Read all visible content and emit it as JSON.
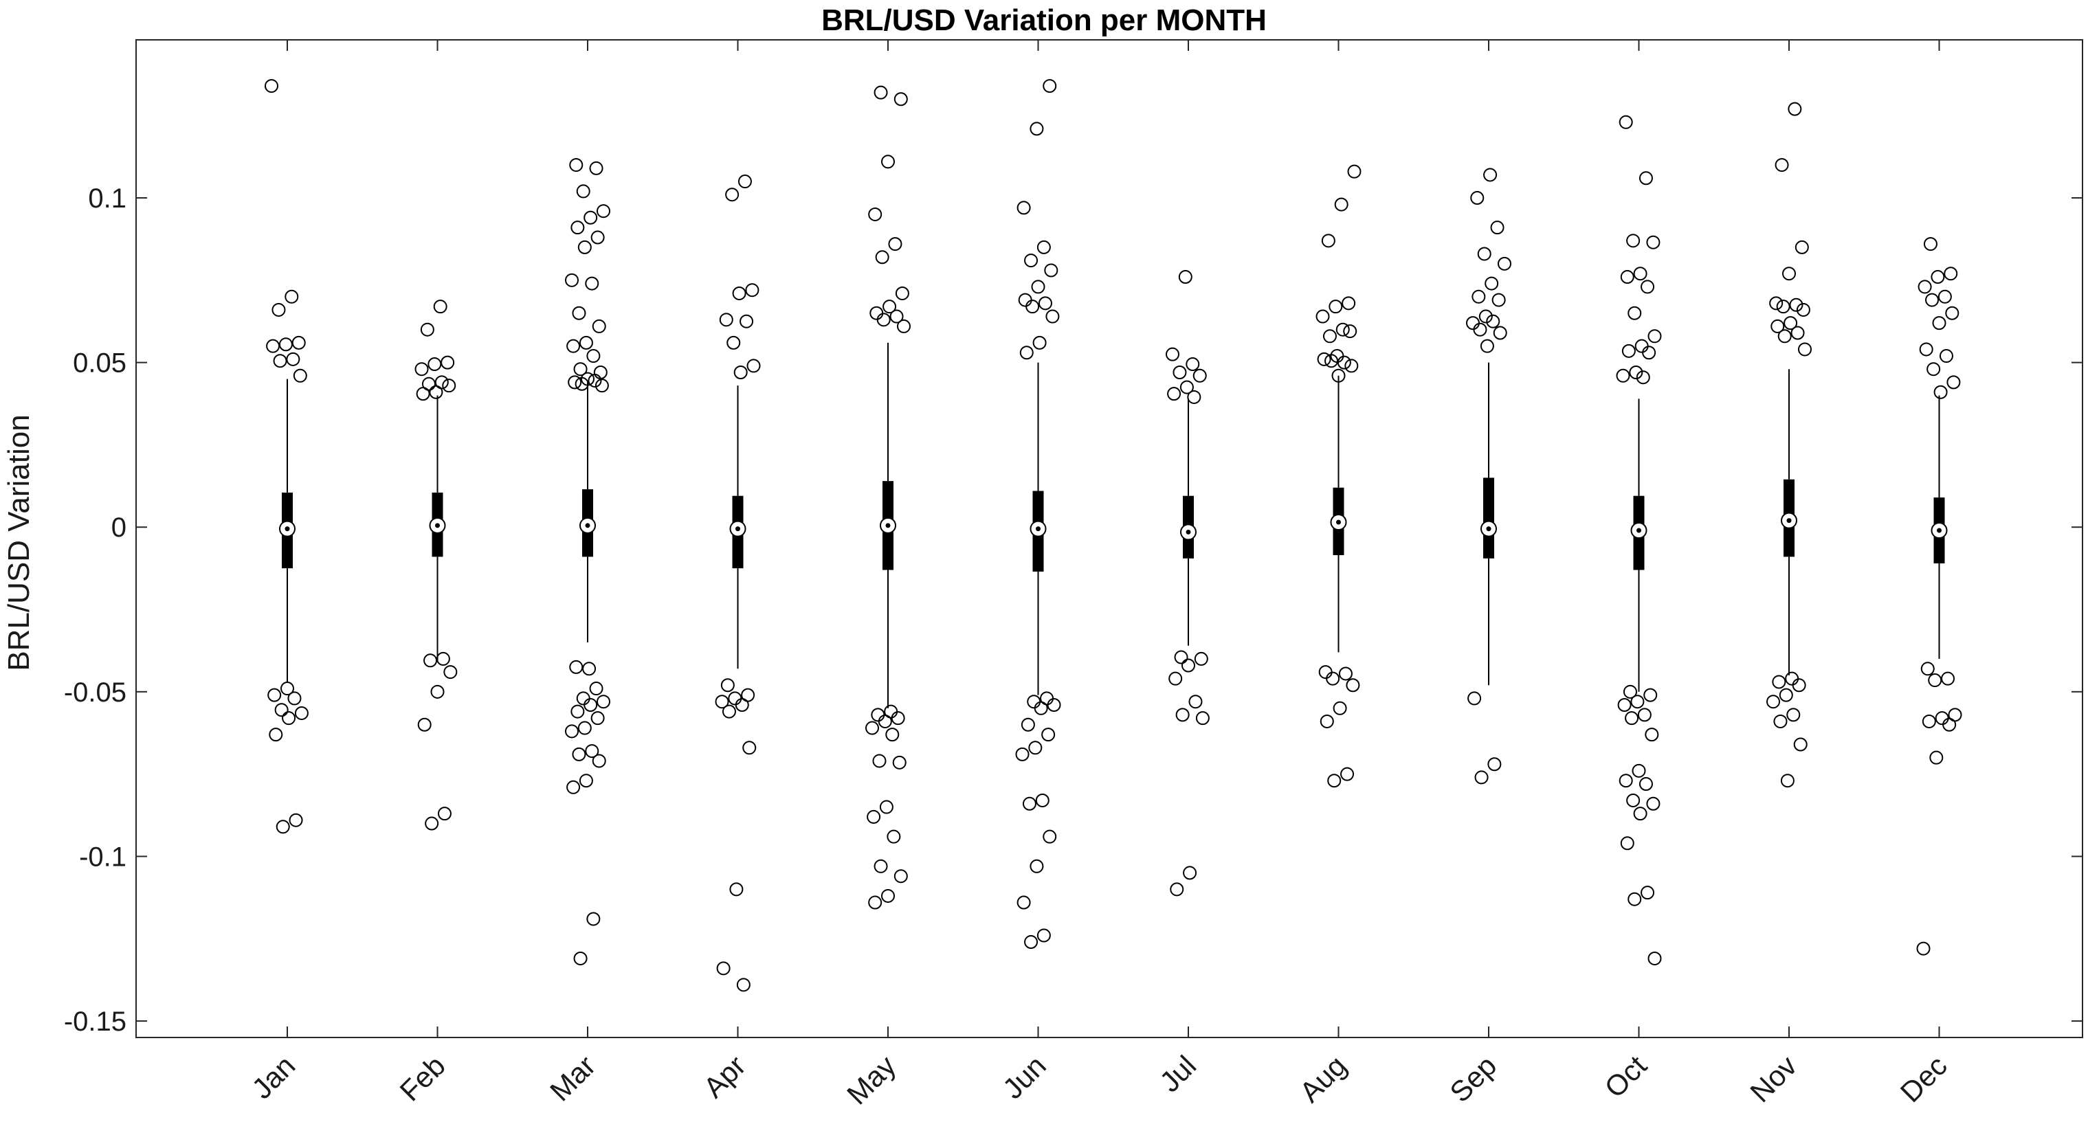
{
  "chart_data": {
    "type": "box",
    "title": "BRL/USD Variation per MONTH",
    "ylabel": "BRL/USD Variation",
    "xlabel": "",
    "ylim": [
      -0.155,
      0.148
    ],
    "yticks": [
      -0.15,
      -0.1,
      -0.05,
      0,
      0.05,
      0.1
    ],
    "ytick_labels": [
      "-0.15",
      "-0.1",
      "-0.05",
      "0",
      "0.05",
      "0.1"
    ],
    "grid": false,
    "categories": [
      "Jan",
      "Feb",
      "Mar",
      "Apr",
      "May",
      "Jun",
      "Jul",
      "Aug",
      "Sep",
      "Oct",
      "Nov",
      "Dec"
    ],
    "boxes": [
      {
        "median": -0.0005,
        "q1": -0.0125,
        "q3": 0.0105,
        "whisker_low": -0.047,
        "whisker_high": 0.045,
        "outliers": [
          0.134,
          0.07,
          0.066,
          0.056,
          0.0555,
          0.055,
          0.051,
          0.0505,
          0.046,
          -0.049,
          -0.051,
          -0.052,
          -0.0555,
          -0.0565,
          -0.058,
          -0.063,
          -0.089,
          -0.091
        ]
      },
      {
        "median": 0.0005,
        "q1": -0.009,
        "q3": 0.0105,
        "whisker_low": -0.041,
        "whisker_high": 0.04,
        "outliers": [
          0.067,
          0.06,
          0.05,
          0.0495,
          0.048,
          0.044,
          0.0435,
          0.043,
          0.041,
          0.0405,
          -0.04,
          -0.0405,
          -0.044,
          -0.05,
          -0.06,
          -0.087,
          -0.09
        ]
      },
      {
        "median": 0.0005,
        "q1": -0.009,
        "q3": 0.0115,
        "whisker_low": -0.035,
        "whisker_high": 0.044,
        "outliers": [
          0.11,
          0.109,
          0.102,
          0.096,
          0.094,
          0.091,
          0.088,
          0.085,
          0.075,
          0.074,
          0.065,
          0.061,
          0.056,
          0.055,
          0.052,
          0.048,
          0.047,
          0.045,
          0.044,
          0.0445,
          0.0435,
          0.043,
          -0.043,
          -0.0425,
          -0.049,
          -0.052,
          -0.053,
          -0.054,
          -0.056,
          -0.058,
          -0.061,
          -0.062,
          -0.068,
          -0.069,
          -0.071,
          -0.077,
          -0.079,
          -0.119,
          -0.131
        ]
      },
      {
        "median": -0.0005,
        "q1": -0.0125,
        "q3": 0.0095,
        "whisker_low": -0.043,
        "whisker_high": 0.043,
        "outliers": [
          0.105,
          0.101,
          0.072,
          0.071,
          0.063,
          0.0625,
          0.056,
          0.049,
          0.047,
          -0.048,
          -0.051,
          -0.052,
          -0.053,
          -0.054,
          -0.056,
          -0.067,
          -0.11,
          -0.134,
          -0.139
        ]
      },
      {
        "median": 0.0005,
        "q1": -0.013,
        "q3": 0.014,
        "whisker_low": -0.055,
        "whisker_high": 0.056,
        "outliers": [
          0.132,
          0.13,
          0.111,
          0.095,
          0.086,
          0.082,
          0.071,
          0.067,
          0.065,
          0.064,
          0.063,
          0.061,
          -0.056,
          -0.057,
          -0.058,
          -0.059,
          -0.061,
          -0.063,
          -0.071,
          -0.0715,
          -0.085,
          -0.088,
          -0.094,
          -0.103,
          -0.106,
          -0.112,
          -0.114
        ]
      },
      {
        "median": -0.0005,
        "q1": -0.0135,
        "q3": 0.011,
        "whisker_low": -0.051,
        "whisker_high": 0.05,
        "outliers": [
          0.134,
          0.121,
          0.097,
          0.085,
          0.081,
          0.078,
          0.073,
          0.069,
          0.068,
          0.067,
          0.064,
          0.056,
          0.053,
          -0.052,
          -0.053,
          -0.054,
          -0.055,
          -0.06,
          -0.063,
          -0.067,
          -0.069,
          -0.083,
          -0.084,
          -0.094,
          -0.103,
          -0.114,
          -0.124,
          -0.126
        ]
      },
      {
        "median": -0.0015,
        "q1": -0.0095,
        "q3": 0.0095,
        "whisker_low": -0.036,
        "whisker_high": 0.039,
        "outliers": [
          0.076,
          0.0525,
          0.0495,
          0.047,
          0.046,
          0.0425,
          0.0405,
          0.0395,
          -0.0395,
          -0.04,
          -0.042,
          -0.046,
          -0.053,
          -0.057,
          -0.058,
          -0.105,
          -0.11
        ]
      },
      {
        "median": 0.0015,
        "q1": -0.0085,
        "q3": 0.012,
        "whisker_low": -0.038,
        "whisker_high": 0.046,
        "outliers": [
          0.108,
          0.098,
          0.087,
          0.068,
          0.067,
          0.064,
          0.06,
          0.058,
          0.0595,
          0.052,
          0.051,
          0.05,
          0.0505,
          0.049,
          0.046,
          -0.044,
          -0.0445,
          -0.046,
          -0.048,
          -0.055,
          -0.059,
          -0.075,
          -0.077
        ]
      },
      {
        "median": -0.0005,
        "q1": -0.0095,
        "q3": 0.015,
        "whisker_low": -0.048,
        "whisker_high": 0.05,
        "outliers": [
          0.107,
          0.1,
          0.091,
          0.083,
          0.08,
          0.074,
          0.07,
          0.069,
          0.064,
          0.062,
          0.0625,
          0.06,
          0.059,
          0.055,
          -0.052,
          -0.072,
          -0.076
        ]
      },
      {
        "median": -0.001,
        "q1": -0.013,
        "q3": 0.0095,
        "whisker_low": -0.05,
        "whisker_high": 0.039,
        "outliers": [
          0.123,
          0.106,
          0.087,
          0.0865,
          0.077,
          0.076,
          0.073,
          0.065,
          0.058,
          0.055,
          0.0535,
          0.053,
          0.047,
          0.046,
          0.0455,
          -0.05,
          -0.051,
          -0.053,
          -0.054,
          -0.057,
          -0.058,
          -0.063,
          -0.074,
          -0.077,
          -0.078,
          -0.083,
          -0.084,
          -0.087,
          -0.096,
          -0.111,
          -0.113,
          -0.131
        ]
      },
      {
        "median": 0.002,
        "q1": -0.009,
        "q3": 0.0145,
        "whisker_low": -0.045,
        "whisker_high": 0.048,
        "outliers": [
          0.127,
          0.11,
          0.085,
          0.077,
          0.068,
          0.0675,
          0.067,
          0.066,
          0.062,
          0.061,
          0.059,
          0.058,
          0.054,
          -0.046,
          -0.047,
          -0.048,
          -0.051,
          -0.053,
          -0.057,
          -0.059,
          -0.066,
          -0.077
        ]
      },
      {
        "median": -0.001,
        "q1": -0.011,
        "q3": 0.009,
        "whisker_low": -0.04,
        "whisker_high": 0.04,
        "outliers": [
          0.086,
          0.077,
          0.076,
          0.073,
          0.07,
          0.069,
          0.065,
          0.062,
          0.054,
          0.052,
          0.048,
          0.044,
          0.041,
          -0.043,
          -0.046,
          -0.0465,
          -0.057,
          -0.058,
          -0.059,
          -0.06,
          -0.07,
          -0.128
        ]
      }
    ]
  }
}
